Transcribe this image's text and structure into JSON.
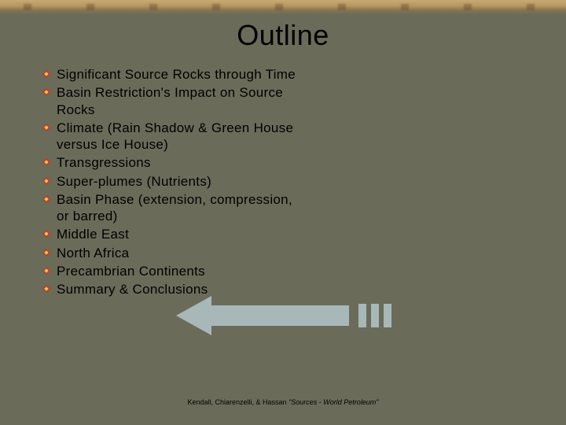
{
  "title": "Outline",
  "bullet_color_primary": "#c0392b",
  "bullet_color_highlight": "#e8c547",
  "items": [
    "Significant Source Rocks through Time",
    "Basin Restriction's Impact on Source Rocks",
    "Climate (Rain Shadow & Green House versus Ice House)",
    "Transgressions",
    "Super-plumes (Nutrients)",
    "Basin Phase (extension, compression, or barred)",
    "Middle East",
    "North Africa",
    "Precambrian Continents",
    "Summary & Conclusions"
  ],
  "arrow_color": "#a8b8b8",
  "footer_authors": "Kendall, Chiarenzelli, & Hassan ",
  "footer_title": "\"Sources - World Petroleum\"",
  "background_color": "#6b6b5a"
}
